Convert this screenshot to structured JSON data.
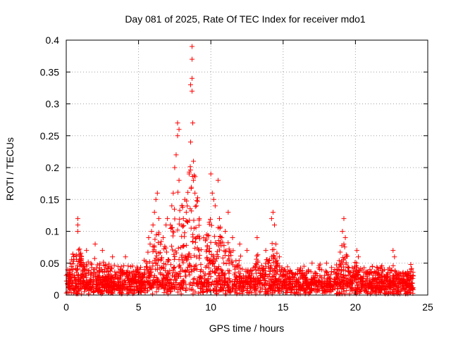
{
  "chart_data": {
    "type": "scatter",
    "title": "Day 081 of 2025, Rate Of TEC Index for receiver mdo1",
    "xlabel": "GPS time / hours",
    "ylabel": "ROTI / TECUs",
    "xlim": [
      0,
      25
    ],
    "ylim": [
      0,
      0.4
    ],
    "xticks": [
      0,
      5,
      10,
      15,
      20,
      25
    ],
    "xtick_labels": [
      "0",
      "5",
      "10",
      "15",
      "20",
      "25"
    ],
    "yticks": [
      0,
      0.05,
      0.1,
      0.15,
      0.2,
      0.25,
      0.3,
      0.35,
      0.4
    ],
    "ytick_labels": [
      "0",
      "0.05",
      "0.1",
      "0.15",
      "0.2",
      "0.25",
      "0.3",
      "0.35",
      "0.4"
    ],
    "grid": true,
    "marker": "+",
    "color": "#ff0000",
    "x_range_hours": [
      0,
      24
    ],
    "series": [
      {
        "name": "ROTI",
        "points": [
          [
            0.8,
            0.12
          ],
          [
            0.8,
            0.11
          ],
          [
            0.8,
            0.1
          ],
          [
            1.4,
            0.07
          ],
          [
            2.0,
            0.08
          ],
          [
            2.5,
            0.07
          ],
          [
            3.2,
            0.06
          ],
          [
            4.1,
            0.06
          ],
          [
            5.1,
            0.04
          ],
          [
            5.6,
            0.05
          ],
          [
            5.7,
            0.09
          ],
          [
            5.8,
            0.08
          ],
          [
            5.9,
            0.1
          ],
          [
            6.0,
            0.11
          ],
          [
            6.1,
            0.13
          ],
          [
            6.2,
            0.15
          ],
          [
            6.3,
            0.16
          ],
          [
            6.4,
            0.12
          ],
          [
            6.7,
            0.09
          ],
          [
            6.9,
            0.11
          ],
          [
            7.0,
            0.12
          ],
          [
            7.2,
            0.11
          ],
          [
            7.3,
            0.14
          ],
          [
            7.4,
            0.16
          ],
          [
            7.5,
            0.2
          ],
          [
            7.6,
            0.22
          ],
          [
            7.7,
            0.25
          ],
          [
            7.7,
            0.27
          ],
          [
            7.8,
            0.26
          ],
          [
            7.8,
            0.18
          ],
          [
            8.0,
            0.14
          ],
          [
            8.1,
            0.12
          ],
          [
            8.2,
            0.15
          ],
          [
            8.3,
            0.13
          ],
          [
            8.5,
            0.19
          ],
          [
            8.6,
            0.24
          ],
          [
            8.6,
            0.33
          ],
          [
            8.7,
            0.34
          ],
          [
            8.7,
            0.32
          ],
          [
            8.7,
            0.37
          ],
          [
            8.7,
            0.39
          ],
          [
            8.75,
            0.27
          ],
          [
            8.8,
            0.21
          ],
          [
            8.8,
            0.18
          ],
          [
            8.9,
            0.16
          ],
          [
            9.0,
            0.14
          ],
          [
            9.2,
            0.12
          ],
          [
            9.5,
            0.09
          ],
          [
            10.0,
            0.19
          ],
          [
            10.1,
            0.16
          ],
          [
            10.2,
            0.15
          ],
          [
            10.3,
            0.14
          ],
          [
            10.5,
            0.18
          ],
          [
            10.6,
            0.12
          ],
          [
            11.0,
            0.1
          ],
          [
            11.2,
            0.13
          ],
          [
            11.5,
            0.09
          ],
          [
            12.0,
            0.08
          ],
          [
            12.5,
            0.07
          ],
          [
            13.2,
            0.09
          ],
          [
            13.8,
            0.07
          ],
          [
            14.2,
            0.12
          ],
          [
            14.3,
            0.13
          ],
          [
            14.4,
            0.11
          ],
          [
            14.5,
            0.08
          ],
          [
            15.0,
            0.04
          ],
          [
            16.0,
            0.04
          ],
          [
            17.0,
            0.05
          ],
          [
            18.0,
            0.05
          ],
          [
            19.1,
            0.1
          ],
          [
            19.2,
            0.12
          ],
          [
            19.3,
            0.09
          ],
          [
            19.2,
            0.08
          ],
          [
            20.1,
            0.07
          ],
          [
            20.2,
            0.06
          ],
          [
            21.0,
            0.04
          ],
          [
            22.0,
            0.04
          ],
          [
            22.6,
            0.07
          ],
          [
            22.7,
            0.06
          ],
          [
            23.5,
            0.03
          ],
          [
            24.0,
            0.03
          ]
        ]
      }
    ]
  }
}
